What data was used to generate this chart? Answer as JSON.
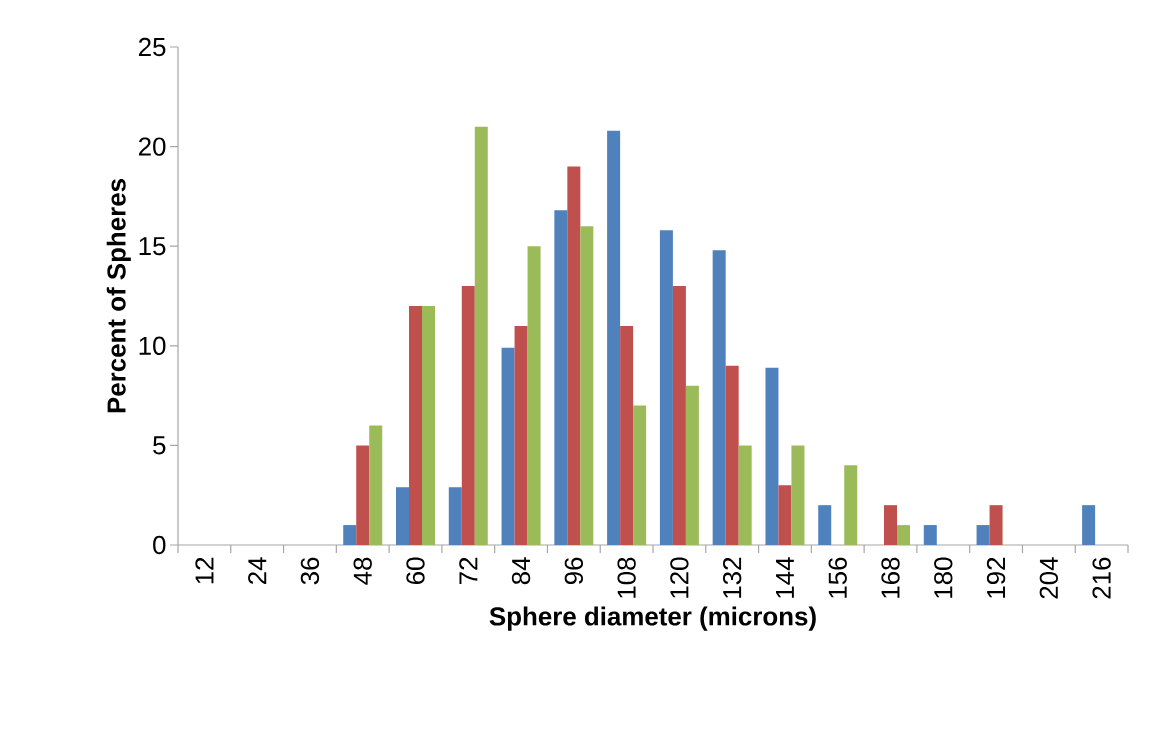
{
  "chart_data": {
    "type": "bar",
    "xlabel": "Sphere diameter (microns)",
    "ylabel": "Percent of Spheres",
    "categories": [
      "12",
      "24",
      "36",
      "48",
      "60",
      "72",
      "84",
      "96",
      "108",
      "120",
      "132",
      "144",
      "156",
      "168",
      "180",
      "192",
      "204",
      "216"
    ],
    "series": [
      {
        "color": "#4f81bd",
        "values": [
          0,
          0,
          0,
          1,
          2.9,
          2.9,
          9.9,
          16.8,
          20.8,
          15.8,
          14.8,
          8.9,
          2,
          0,
          1,
          1,
          0,
          2
        ]
      },
      {
        "color": "#c0504d",
        "values": [
          0,
          0,
          0,
          5,
          12,
          13,
          11,
          19,
          11,
          13,
          9,
          3,
          0,
          2,
          0,
          2,
          0,
          0
        ]
      },
      {
        "color": "#9bbb59",
        "values": [
          0,
          0,
          0,
          6,
          12,
          21,
          15,
          16,
          7,
          8,
          5,
          5,
          4,
          1,
          0,
          0,
          0,
          0
        ]
      }
    ],
    "ylim": [
      0,
      25
    ],
    "yticks": [
      0,
      5,
      10,
      15,
      20,
      25
    ],
    "grid": false
  }
}
